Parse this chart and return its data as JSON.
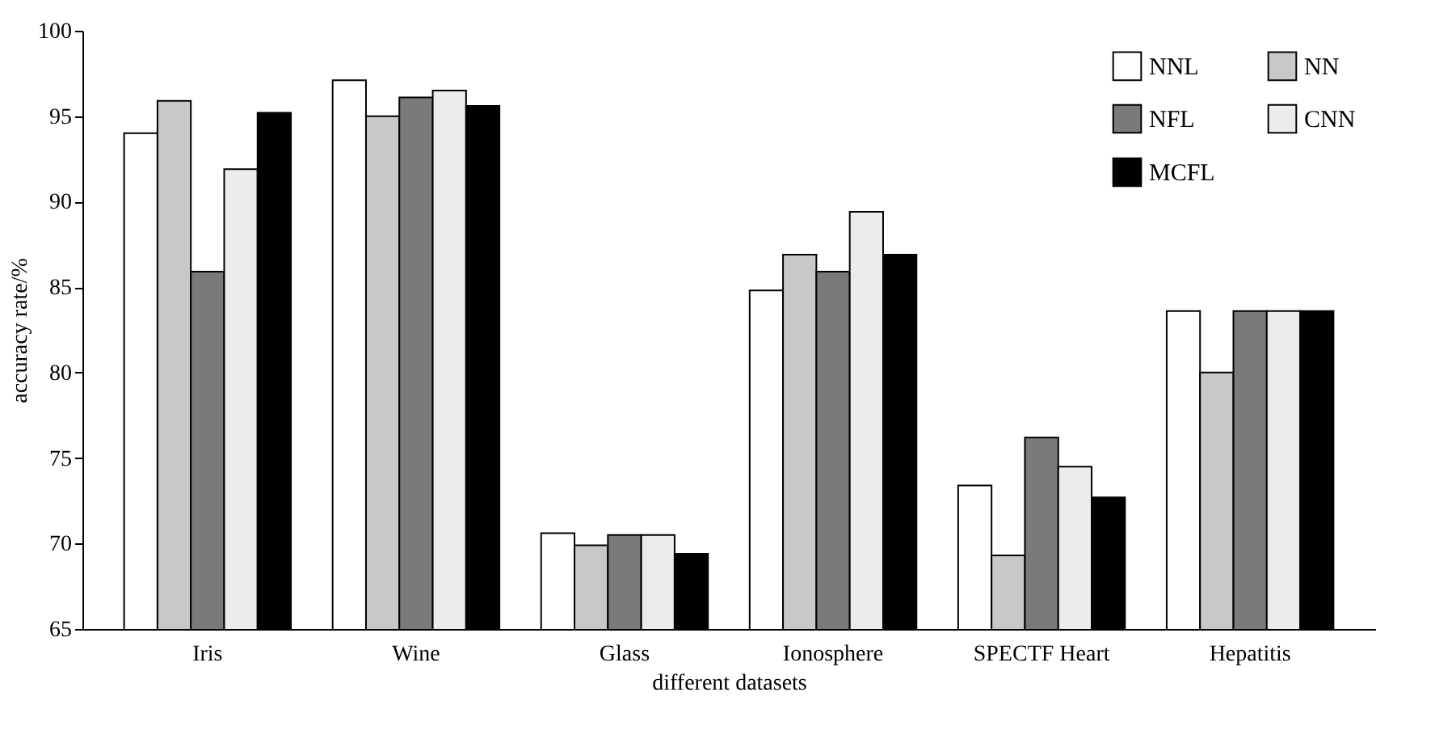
{
  "chart_data": {
    "type": "bar",
    "xlabel": "different datasets",
    "ylabel": "accuracy rate/%",
    "categories": [
      "Iris",
      "Wine",
      "Glass",
      "Ionosphere",
      "SPECTF Heart",
      "Hepatitis"
    ],
    "series": [
      {
        "name": "NNL",
        "color": "#ffffff",
        "values": [
          94.0,
          97.1,
          70.6,
          84.8,
          73.4,
          83.6
        ]
      },
      {
        "name": "NN",
        "color": "#c8c8c8",
        "values": [
          95.9,
          95.0,
          69.9,
          86.9,
          69.3,
          80.0
        ]
      },
      {
        "name": "NFL",
        "color": "#7a7a7a",
        "values": [
          85.9,
          96.1,
          70.5,
          85.9,
          76.2,
          83.6
        ]
      },
      {
        "name": "CNN",
        "color": "#ececec",
        "values": [
          91.9,
          96.5,
          70.5,
          89.4,
          74.5,
          83.6
        ]
      },
      {
        "name": "MCFL",
        "color": "#000000",
        "values": [
          95.2,
          95.6,
          69.4,
          86.9,
          72.7,
          83.6
        ]
      }
    ],
    "ylim": [
      65,
      100
    ],
    "yticks": [
      65,
      70,
      75,
      80,
      85,
      90,
      95,
      100
    ],
    "grid": false,
    "legend": "top right"
  }
}
